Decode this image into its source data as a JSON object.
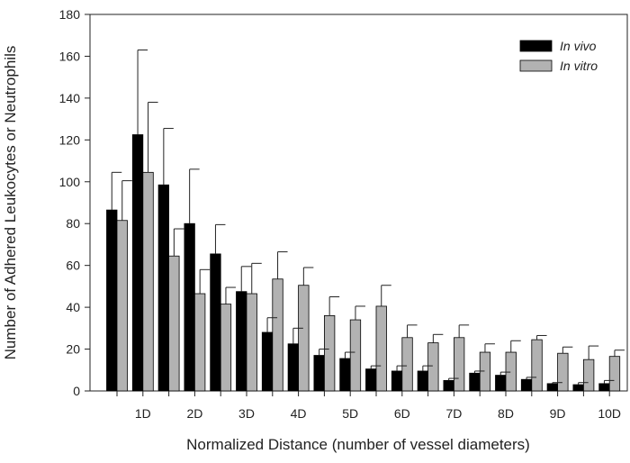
{
  "chart_data": {
    "type": "bar",
    "xlabel": "Normalized Distance (number of vessel diameters)",
    "ylabel": "Number of Adhered Leukocytes or Neutrophils",
    "ylim": [
      0,
      180
    ],
    "yticks": [
      0,
      20,
      40,
      60,
      80,
      100,
      120,
      140,
      160,
      180
    ],
    "categories": [
      "",
      "1D",
      "",
      "2D",
      "",
      "3D",
      "",
      "4D",
      "",
      "5D",
      "",
      "6D",
      "",
      "7D",
      "",
      "8D",
      "",
      "9D",
      "",
      "10D"
    ],
    "grid": false,
    "legend_position": "top-right",
    "series": [
      {
        "name": "In vivo",
        "color": "#000000",
        "values": [
          86.5,
          122.5,
          98.5,
          80,
          65.5,
          47.5,
          28,
          22.5,
          17,
          15.5,
          10.5,
          9.5,
          9.5,
          5,
          8.5,
          7.5,
          5.5,
          3.5,
          3,
          3.5
        ],
        "errors": [
          18,
          40.5,
          27,
          26,
          14,
          12,
          7,
          7.5,
          3,
          3,
          1.5,
          2.5,
          2.5,
          1,
          1,
          1.5,
          1,
          0.5,
          1,
          1.5
        ]
      },
      {
        "name": "In vitro",
        "color": "#b2b2b2",
        "values": [
          81.5,
          104.5,
          64.5,
          46.5,
          41.5,
          46.5,
          53.5,
          50.5,
          36,
          34,
          40.5,
          25.5,
          23,
          25.5,
          18.5,
          18.5,
          24.5,
          18,
          15,
          16.5
        ],
        "errors": [
          19,
          33.5,
          13,
          11.5,
          8,
          14.5,
          13,
          8.5,
          9,
          6.5,
          10,
          6,
          4,
          6,
          4,
          5.5,
          2,
          3,
          6.5,
          3
        ]
      }
    ]
  }
}
